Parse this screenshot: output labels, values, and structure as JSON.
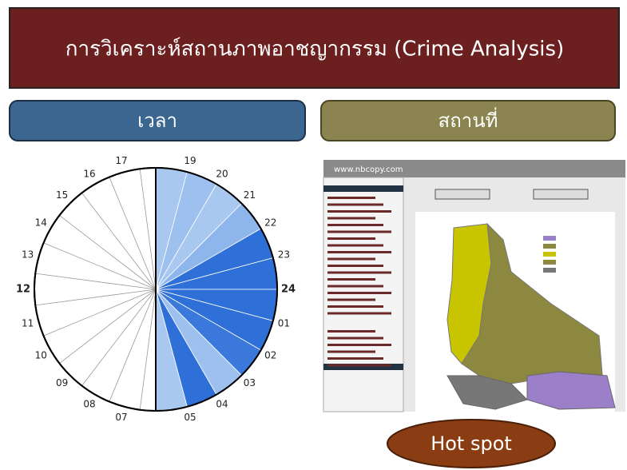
{
  "header": {
    "title": "การวิเคราะห์สถานภาพอาชญากรรม (Crime Analysis)"
  },
  "panels": {
    "time": "เวลา",
    "place": "สถานที่"
  },
  "clock": {
    "hours": [
      "01",
      "02",
      "03",
      "04",
      "05",
      "07",
      "08",
      "09",
      "10",
      "11",
      "12",
      "13",
      "14",
      "15",
      "16",
      "17",
      "19",
      "20",
      "21",
      "22",
      "23",
      "24"
    ]
  },
  "map": {
    "url": "www.nbcopy.com"
  },
  "badge": "Hot spot"
}
